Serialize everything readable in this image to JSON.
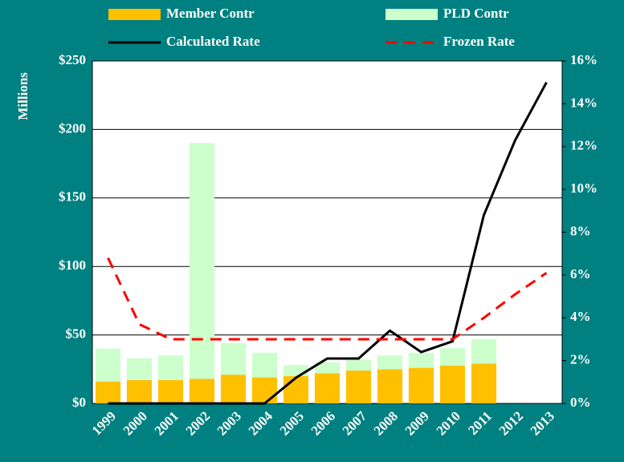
{
  "chart_data": {
    "type": "bar",
    "y_label": "Millions",
    "categories": [
      "1999",
      "2000",
      "2001",
      "2002",
      "2003",
      "2004",
      "2005",
      "2006",
      "2007",
      "2008",
      "2009",
      "2010",
      "2011",
      "2012",
      "2013"
    ],
    "series": [
      {
        "name": "Member Contr",
        "type": "bar",
        "color": "#ffc000",
        "values": [
          16,
          17,
          17,
          18,
          21,
          19,
          20,
          22,
          24,
          25,
          26,
          27.5,
          29,
          null,
          null
        ]
      },
      {
        "name": "PLD Contr",
        "type": "bar",
        "color": "#ccffcc",
        "values": [
          24,
          16,
          18,
          172,
          23,
          18,
          8,
          8,
          8,
          10,
          11,
          13,
          18,
          null,
          null
        ]
      },
      {
        "name": "Calculated Rate",
        "type": "line",
        "axis": "y2",
        "color": "#000000",
        "dashed": false,
        "values": [
          0,
          0,
          0,
          0,
          0,
          0,
          1.2,
          2.1,
          2.1,
          3.4,
          2.4,
          2.9,
          8.8,
          12.3,
          15.0
        ]
      },
      {
        "name": "Frozen Rate",
        "type": "line",
        "axis": "y2",
        "color": "#ff0000",
        "dashed": true,
        "values": [
          6.8,
          3.7,
          3.0,
          3.0,
          3.0,
          3.0,
          3.0,
          3.0,
          3.0,
          3.0,
          3.0,
          3.0,
          4.0,
          5.1,
          6.1
        ]
      }
    ],
    "stacked": true,
    "ylim": [
      0,
      250
    ],
    "yticks": [
      {
        "value": 0,
        "label": "$0"
      },
      {
        "value": 50,
        "label": "$50"
      },
      {
        "value": 100,
        "label": "$100"
      },
      {
        "value": 150,
        "label": "$150"
      },
      {
        "value": 200,
        "label": "$200"
      },
      {
        "value": 250,
        "label": "$250"
      }
    ],
    "y2lim": [
      0,
      16
    ],
    "y2ticks": [
      {
        "value": 0,
        "label": "0%"
      },
      {
        "value": 2,
        "label": "2%"
      },
      {
        "value": 4,
        "label": "4%"
      },
      {
        "value": 6,
        "label": "6%"
      },
      {
        "value": 8,
        "label": "8%"
      },
      {
        "value": 10,
        "label": "10%"
      },
      {
        "value": 12,
        "label": "12%"
      },
      {
        "value": 14,
        "label": "14%"
      },
      {
        "value": 16,
        "label": "16%"
      }
    ],
    "grid": true,
    "background": "#008080"
  }
}
